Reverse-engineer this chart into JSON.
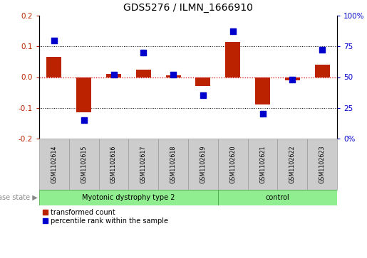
{
  "title": "GDS5276 / ILMN_1666910",
  "samples": [
    "GSM1102614",
    "GSM1102615",
    "GSM1102616",
    "GSM1102617",
    "GSM1102618",
    "GSM1102619",
    "GSM1102620",
    "GSM1102621",
    "GSM1102622",
    "GSM1102623"
  ],
  "red_values": [
    0.065,
    -0.115,
    0.01,
    0.025,
    0.005,
    -0.03,
    0.115,
    -0.09,
    -0.01,
    0.04
  ],
  "blue_percentiles": [
    80,
    15,
    52,
    70,
    52,
    35,
    87,
    20,
    48,
    72
  ],
  "group1_label": "Myotonic dystrophy type 2",
  "group1_samples": 6,
  "group2_label": "control",
  "group2_samples": 4,
  "ylim_left": [
    -0.2,
    0.2
  ],
  "ylim_right": [
    0,
    100
  ],
  "yticks_left": [
    -0.2,
    -0.1,
    0.0,
    0.1,
    0.2
  ],
  "yticks_right": [
    0,
    25,
    50,
    75,
    100
  ],
  "ytick_labels_right": [
    "0%",
    "25",
    "50",
    "75",
    "100%"
  ],
  "red_color": "#bb2200",
  "blue_color": "#0000cc",
  "bar_width": 0.5,
  "dot_size": 28,
  "hline_color": "#dd0000",
  "hline_style": ":",
  "grid_color": "black",
  "grid_style": ":",
  "group1_color": "#90ee90",
  "group2_color": "#90ee90",
  "label_color": "#888888",
  "bg_tick_area": "#cccccc",
  "legend_red_label": "transformed count",
  "legend_blue_label": "percentile rank within the sample"
}
